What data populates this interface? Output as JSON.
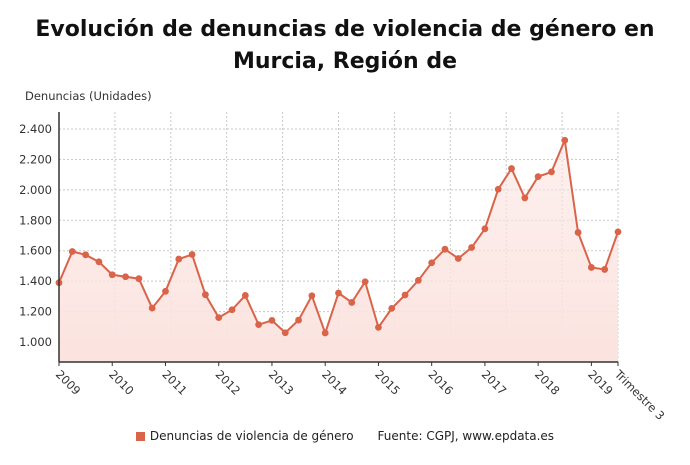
{
  "chart_data": {
    "type": "area",
    "title": "Evolución de denuncias de violencia de género en Murcia, Región de",
    "ylabel": "Denuncias (Unidades)",
    "xlabel": "",
    "ylim": [
      880,
      2500
    ],
    "yticks": [
      1000,
      1200,
      1400,
      1600,
      1800,
      2000,
      2200,
      2400
    ],
    "ytick_labels": [
      "1.000",
      "1.200",
      "1.400",
      "1.600",
      "1.800",
      "2.000",
      "2.200",
      "2.400"
    ],
    "xtick_labels": [
      "2009",
      "2010",
      "2011",
      "2012",
      "2013",
      "2014",
      "2015",
      "2016",
      "2017",
      "2018",
      "2019",
      "Trimestre 3"
    ],
    "grid": true,
    "legend_placement": "bottom",
    "x": [
      "2009 T1",
      "2009 T2",
      "2009 T3",
      "2009 T4",
      "2010 T1",
      "2010 T2",
      "2010 T3",
      "2010 T4",
      "2011 T1",
      "2011 T2",
      "2011 T3",
      "2011 T4",
      "2012 T1",
      "2012 T2",
      "2012 T3",
      "2012 T4",
      "2013 T1",
      "2013 T2",
      "2013 T3",
      "2013 T4",
      "2014 T1",
      "2014 T2",
      "2014 T3",
      "2014 T4",
      "2015 T1",
      "2015 T2",
      "2015 T3",
      "2015 T4",
      "2016 T1",
      "2016 T2",
      "2016 T3",
      "2016 T4",
      "2017 T1",
      "2017 T2",
      "2017 T3",
      "2017 T4",
      "2018 T1",
      "2018 T2",
      "2018 T3",
      "2018 T4",
      "2019 T1",
      "2019 T2",
      "2019 T3"
    ],
    "series": [
      {
        "name": "Denuncias de violencia de género",
        "color": "#d9644a",
        "fill": "#fbe3df",
        "values": [
          1390,
          1595,
          1573,
          1527,
          1442,
          1429,
          1416,
          1223,
          1333,
          1545,
          1575,
          1311,
          1160,
          1212,
          1306,
          1114,
          1142,
          1061,
          1144,
          1304,
          1059,
          1322,
          1260,
          1396,
          1096,
          1221,
          1309,
          1405,
          1521,
          1610,
          1549,
          1621,
          1744,
          2004,
          2140,
          1947,
          2087,
          2118,
          2326,
          1720,
          1490,
          1477,
          1724
        ]
      }
    ],
    "source": "Fuente: CGPJ, www.epdata.es"
  }
}
